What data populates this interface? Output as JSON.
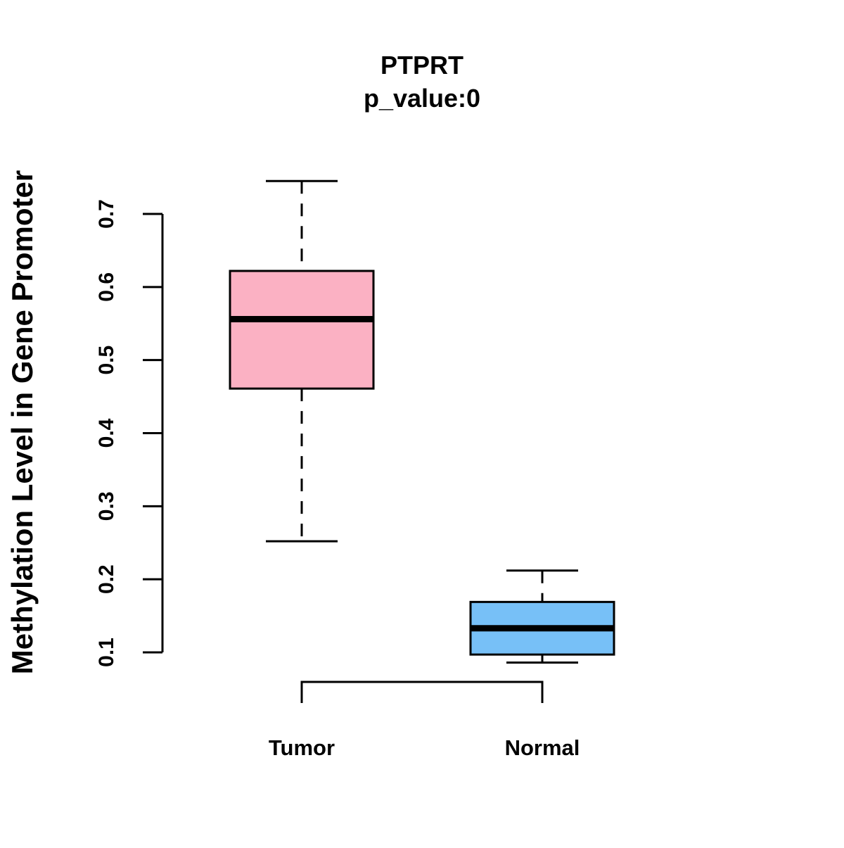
{
  "chart_data": {
    "type": "boxplot",
    "title": "PTPRT",
    "subtitle": "p_value:0",
    "xlabel": "",
    "ylabel": "Methylation Level in Gene Promoter",
    "ylim": [
      0.1,
      0.7
    ],
    "yticks": [
      0.1,
      0.2,
      0.3,
      0.4,
      0.5,
      0.6,
      0.7
    ],
    "ytick_labels": [
      "0.1",
      "0.2",
      "0.3",
      "0.4",
      "0.5",
      "0.6",
      "0.7"
    ],
    "categories": [
      "Tumor",
      "Normal"
    ],
    "boxes": [
      {
        "name": "Tumor",
        "whisker_low": 0.252,
        "q1": 0.461,
        "median": 0.556,
        "q3": 0.622,
        "whisker_high": 0.745,
        "color": "#FBB1C3"
      },
      {
        "name": "Normal",
        "whisker_low": 0.086,
        "q1": 0.097,
        "median": 0.133,
        "q3": 0.169,
        "whisker_high": 0.212,
        "color": "#77C0F7"
      }
    ],
    "bracket": {
      "from": "Tumor",
      "to": "Normal"
    }
  }
}
